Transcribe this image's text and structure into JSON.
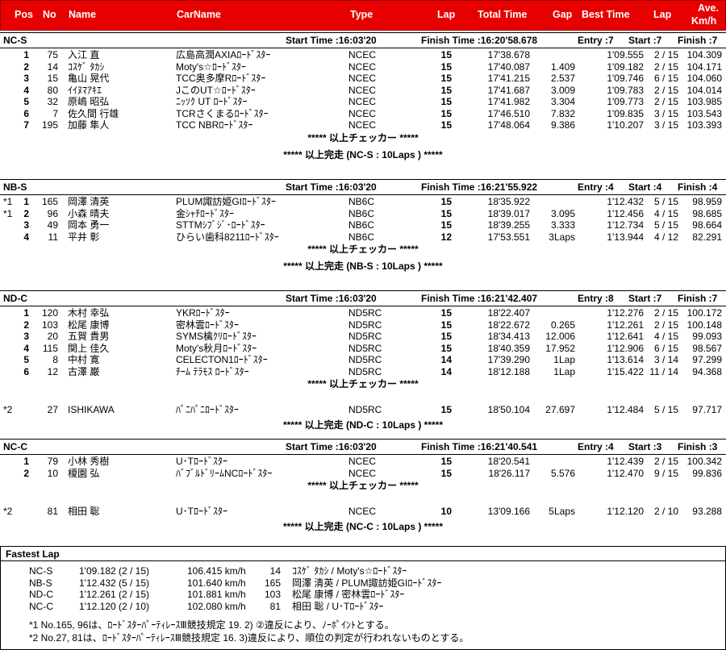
{
  "header": {
    "pos": "Pos",
    "no": "No",
    "name": "Name",
    "carname": "CarName",
    "type": "Type",
    "lap": "Lap",
    "total_time": "Total Time",
    "gap": "Gap",
    "best_time": "Best Time",
    "best_lap": "Lap",
    "ave1": "Ave.",
    "ave2": "Km/h"
  },
  "sections": [
    {
      "cls": "NC-S",
      "start": "Start Time :16:03'20",
      "finish": "Finish Time :16:20'58.678",
      "entry": "Entry :7",
      "startc": "Start :7",
      "finishc": "Finish :7",
      "rows": [
        {
          "mark": "",
          "pos": "1",
          "no": "75",
          "name": "入江 直",
          "car": "広島高潤AXIAﾛｰﾄﾞｽﾀｰ",
          "type": "NCEC",
          "lap": "15",
          "total": "17'38.678",
          "gap": "",
          "best": "1'09.555",
          "bl": "2 / 15",
          "ave": "104.309"
        },
        {
          "mark": "",
          "pos": "2",
          "no": "14",
          "name": "ｺｽｹﾞ ﾀｶｼ",
          "car": "Moty's☆ﾛｰﾄﾞｽﾀｰ",
          "type": "NCEC",
          "lap": "15",
          "total": "17'40.087",
          "gap": "1.409",
          "best": "1'09.182",
          "bl": "2 / 15",
          "ave": "104.171"
        },
        {
          "mark": "",
          "pos": "3",
          "no": "15",
          "name": "亀山 晃代",
          "car": "TCC奥多摩Rﾛｰﾄﾞｽﾀｰ",
          "type": "NCEC",
          "lap": "15",
          "total": "17'41.215",
          "gap": "2.537",
          "best": "1'09.746",
          "bl": "6 / 15",
          "ave": "104.060"
        },
        {
          "mark": "",
          "pos": "4",
          "no": "80",
          "name": "ｲｲﾇﾏｱｷｴ",
          "car": "JこのUT☆ﾛｰﾄﾞｽﾀｰ",
          "type": "NCEC",
          "lap": "15",
          "total": "17'41.687",
          "gap": "3.009",
          "best": "1'09.783",
          "bl": "2 / 15",
          "ave": "104.014"
        },
        {
          "mark": "",
          "pos": "5",
          "no": "32",
          "name": "原嶋 昭弘",
          "car": "ﾆｯｿｸ UT ﾛｰﾄﾞｽﾀｰ",
          "type": "NCEC",
          "lap": "15",
          "total": "17'41.982",
          "gap": "3.304",
          "best": "1'09.773",
          "bl": "2 / 15",
          "ave": "103.985"
        },
        {
          "mark": "",
          "pos": "6",
          "no": "7",
          "name": "佐久間 行雄",
          "car": "TCRさくまるﾛｰﾄﾞｽﾀｰ",
          "type": "NCEC",
          "lap": "15",
          "total": "17'46.510",
          "gap": "7.832",
          "best": "1'09.835",
          "bl": "3 / 15",
          "ave": "103.543"
        },
        {
          "mark": "",
          "pos": "7",
          "no": "195",
          "name": "加藤 隼人",
          "car": "TCC NBRﾛｰﾄﾞｽﾀｰ",
          "type": "NCEC",
          "lap": "15",
          "total": "17'48.064",
          "gap": "9.386",
          "best": "1'10.207",
          "bl": "3 / 15",
          "ave": "103.393"
        }
      ],
      "extra": [],
      "checker": "***** 以上チェッカー *****",
      "complete": "***** 以上完走 (NC-S : 10Laps ) *****"
    },
    {
      "cls": "NB-S",
      "start": "Start Time :16:03'20",
      "finish": "Finish Time :16:21'55.922",
      "entry": "Entry :4",
      "startc": "Start :4",
      "finishc": "Finish :4",
      "rows": [
        {
          "mark": "*1",
          "pos": "1",
          "no": "165",
          "name": "岡澤 清英",
          "car": "PLUM諏訪姫GIﾛｰﾄﾞｽﾀｰ",
          "type": "NB6C",
          "lap": "15",
          "total": "18'35.922",
          "gap": "",
          "best": "1'12.432",
          "bl": "5 / 15",
          "ave": "98.959"
        },
        {
          "mark": "*1",
          "pos": "2",
          "no": "96",
          "name": "小森 晴夫",
          "car": "金ｼｬﾁﾛｰﾄﾞｽﾀｰ",
          "type": "NB6C",
          "lap": "15",
          "total": "18'39.017",
          "gap": "3.095",
          "best": "1'12.456",
          "bl": "4 / 15",
          "ave": "98.685"
        },
        {
          "mark": "",
          "pos": "3",
          "no": "49",
          "name": "岡本 勇一",
          "car": "STTMｼﾌﾞｼﾞ･ﾛｰﾄﾞｽﾀｰ",
          "type": "NB6C",
          "lap": "15",
          "total": "18'39.255",
          "gap": "3.333",
          "best": "1'12.734",
          "bl": "5 / 15",
          "ave": "98.664"
        },
        {
          "mark": "",
          "pos": "4",
          "no": "11",
          "name": "平井 彰",
          "car": "ひらい歯科8211ﾛｰﾄﾞｽﾀｰ",
          "type": "NB6C",
          "lap": "12",
          "total": "17'53.551",
          "gap": "3Laps",
          "best": "1'13.944",
          "bl": "4 / 12",
          "ave": "82.291"
        }
      ],
      "extra": [],
      "checker": "***** 以上チェッカー *****",
      "complete": "***** 以上完走 (NB-S : 10Laps ) *****"
    },
    {
      "cls": "ND-C",
      "start": "Start Time :16:03'20",
      "finish": "Finish Time :16:21'42.407",
      "entry": "Entry :8",
      "startc": "Start :7",
      "finishc": "Finish :7",
      "rows": [
        {
          "mark": "",
          "pos": "1",
          "no": "120",
          "name": "木村 幸弘",
          "car": "YKRﾛｰﾄﾞｽﾀｰ",
          "type": "ND5RC",
          "lap": "15",
          "total": "18'22.407",
          "gap": "",
          "best": "1'12.276",
          "bl": "2 / 15",
          "ave": "100.172"
        },
        {
          "mark": "",
          "pos": "2",
          "no": "103",
          "name": "松尾 康博",
          "car": "密林雲ﾛｰﾄﾞｽﾀｰ",
          "type": "ND5RC",
          "lap": "15",
          "total": "18'22.672",
          "gap": "0.265",
          "best": "1'12.261",
          "bl": "2 / 15",
          "ave": "100.148"
        },
        {
          "mark": "",
          "pos": "3",
          "no": "20",
          "name": "五賀 貴男",
          "car": "SYMS檎ｸﾘﾛｰﾄﾞｽﾀｰ",
          "type": "ND5RC",
          "lap": "15",
          "total": "18'34.413",
          "gap": "12.006",
          "best": "1'12.641",
          "bl": "4 / 15",
          "ave": "99.093"
        },
        {
          "mark": "",
          "pos": "4",
          "no": "115",
          "name": "関上 佳久",
          "car": "Moty's秋月ﾛｰﾄﾞｽﾀｰ",
          "type": "ND5RC",
          "lap": "15",
          "total": "18'40.359",
          "gap": "17.952",
          "best": "1'12.906",
          "bl": "6 / 15",
          "ave": "98.567"
        },
        {
          "mark": "",
          "pos": "5",
          "no": "8",
          "name": "中村 寛",
          "car": "CELECTON1ﾛｰﾄﾞｽﾀｰ",
          "type": "ND5RC",
          "lap": "14",
          "total": "17'39.290",
          "gap": "1Lap",
          "best": "1'13.614",
          "bl": "3 / 14",
          "ave": "97.299"
        },
        {
          "mark": "",
          "pos": "6",
          "no": "12",
          "name": "古澤 巌",
          "car": "ﾁｰﾑ ﾃﾗﾓｽ ﾛｰﾄﾞｽﾀｰ",
          "type": "ND5RC",
          "lap": "14",
          "total": "18'12.188",
          "gap": "1Lap",
          "best": "1'15.422",
          "bl": "11 / 14",
          "ave": "94.368"
        }
      ],
      "extra": [
        {
          "mark": "*2",
          "pos": "",
          "no": "27",
          "name": "ISHIKAWA",
          "car": "ﾊﾟﾆﾊﾟﾆﾛｰﾄﾞｽﾀｰ",
          "type": "ND5RC",
          "lap": "15",
          "total": "18'50.104",
          "gap": "27.697",
          "best": "1'12.484",
          "bl": "5 / 15",
          "ave": "97.717"
        }
      ],
      "checker": "***** 以上チェッカー *****",
      "complete": "***** 以上完走 (ND-C : 10Laps ) *****"
    },
    {
      "cls": "NC-C",
      "start": "Start Time :16:03'20",
      "finish": "Finish Time :16:21'40.541",
      "entry": "Entry :4",
      "startc": "Start :3",
      "finishc": "Finish :3",
      "rows": [
        {
          "mark": "",
          "pos": "1",
          "no": "79",
          "name": "小林 秀樹",
          "car": "U･Tﾛｰﾄﾞｽﾀｰ",
          "type": "NCEC",
          "lap": "15",
          "total": "18'20.541",
          "gap": "",
          "best": "1'12.439",
          "bl": "2 / 15",
          "ave": "100.342"
        },
        {
          "mark": "",
          "pos": "2",
          "no": "10",
          "name": "榎園 弘",
          "car": "ﾊﾞﾌﾞﾙﾄﾞﾘｰﾑNCﾛｰﾄﾞｽﾀｰ",
          "type": "NCEC",
          "lap": "15",
          "total": "18'26.117",
          "gap": "5.576",
          "best": "1'12.470",
          "bl": "9 / 15",
          "ave": "99.836"
        }
      ],
      "extra": [
        {
          "mark": "*2",
          "pos": "",
          "no": "81",
          "name": "相田 聡",
          "car": "U･Tﾛｰﾄﾞｽﾀｰ",
          "type": "NCEC",
          "lap": "10",
          "total": "13'09.166",
          "gap": "5Laps",
          "best": "1'12.120",
          "bl": "2 / 10",
          "ave": "93.288"
        }
      ],
      "checker": "***** 以上チェッカー *****",
      "complete": "***** 以上完走 (NC-C : 10Laps ) *****"
    }
  ],
  "fastest": {
    "title": "Fastest Lap",
    "rows": [
      {
        "cls": "NC-S",
        "time": "1'09.182 (2 / 15)",
        "speed": "106.415 km/h",
        "no": "14",
        "who": "ｺｽｹﾞ ﾀｶｼ / Moty's☆ﾛｰﾄﾞｽﾀｰ"
      },
      {
        "cls": "NB-S",
        "time": "1'12.432 (5 / 15)",
        "speed": "101.640 km/h",
        "no": "165",
        "who": "岡澤 清英 / PLUM諏訪姫GIﾛｰﾄﾞｽﾀｰ"
      },
      {
        "cls": "ND-C",
        "time": "1'12.261 (2 / 15)",
        "speed": "101.881 km/h",
        "no": "103",
        "who": "松尾 康博 / 密林雲ﾛｰﾄﾞｽﾀｰ"
      },
      {
        "cls": "NC-C",
        "time": "1'12.120 (2 / 10)",
        "speed": "102.080 km/h",
        "no": "81",
        "who": "相田 聡 / U･Tﾛｰﾄﾞｽﾀｰ"
      }
    ],
    "notes": [
      "*1 No.165, 96は、ﾛｰﾄﾞｽﾀｰﾊﾟｰﾃｨﾚｰｽⅢ競技規定 19. 2) ②違反により、ﾉｰﾎﾟｲﾝﾄとする。",
      "*2 No.27, 81は、ﾛｰﾄﾞｽﾀｰﾊﾟｰﾃｨﾚｰｽⅢ競技規定 16. 3)違反により、順位の判定が行われないものとする。"
    ]
  }
}
